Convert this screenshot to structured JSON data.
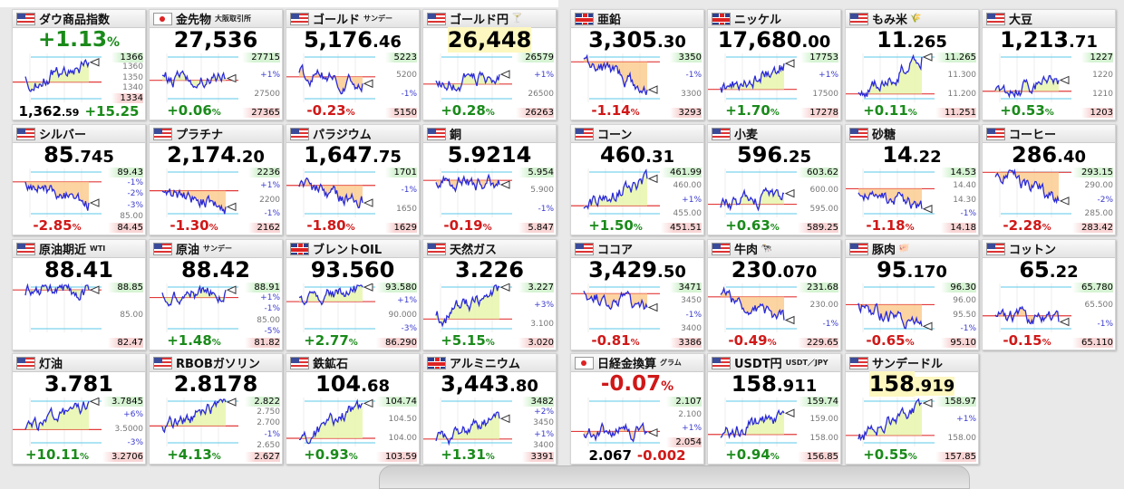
{
  "colors": {
    "up": "#1a8a1a",
    "down": "#d01818",
    "prev_close_line": "#e23a3a",
    "percent_line": "#5bc8e8",
    "series_line": "#2a2ad8"
  },
  "tiles": [
    {
      "name": "ダウ商品指数",
      "flag": "us",
      "mode": "change_top",
      "change": "+1.13",
      "pct": "%",
      "dir": "up",
      "bottom_price_int": "1,362",
      "bottom_price_dec": ".59",
      "bottom_diff": "+15.25",
      "high": "1366",
      "low": "1334",
      "labels": [
        "1360",
        "1350",
        "1340"
      ]
    },
    {
      "name": "金先物",
      "sub": "大阪取引所",
      "flag": "jp",
      "price_int": "27,536",
      "price_dec": "",
      "change": "+0.06",
      "pct": "%",
      "dir": "up",
      "high": "27715",
      "low": "27365",
      "labels": [
        "+1%",
        "27500"
      ]
    },
    {
      "name": "ゴールド",
      "sub": "サンデー",
      "flag": "us",
      "price_int": "5,176",
      "price_dec": ".46",
      "change": "-0.23",
      "pct": "%",
      "dir": "down",
      "high": "5223",
      "low": "5150",
      "labels": [
        "5200",
        "-1%"
      ]
    },
    {
      "name": "ゴールド円",
      "icon": "🍸",
      "flag": "us",
      "price_int": "26,448",
      "price_dec": "",
      "highlight": true,
      "change": "+0.28",
      "pct": "%",
      "dir": "up",
      "high": "26579",
      "low": "26263",
      "labels": [
        "+1%",
        "26500"
      ]
    },
    {
      "name": "亜鉛",
      "flag": "uk",
      "price_int": "3,305",
      "price_dec": ".30",
      "change": "-1.14",
      "pct": "%",
      "dir": "down",
      "high": "3350",
      "low": "3293",
      "labels": [
        "-1%",
        "3300"
      ]
    },
    {
      "name": "ニッケル",
      "flag": "uk",
      "price_int": "17,680",
      "price_dec": ".00",
      "change": "+1.70",
      "pct": "%",
      "dir": "up",
      "high": "17753",
      "low": "17278",
      "labels": [
        "+1%",
        "17500"
      ]
    },
    {
      "name": "もみ米",
      "icon": "🌾",
      "flag": "us",
      "price_int": "11",
      "price_dec": ".265",
      "change": "+0.11",
      "pct": "%",
      "dir": "up",
      "high": "11.265",
      "low": "11.251",
      "labels": [
        "11.300",
        "11.200"
      ]
    },
    {
      "name": "大豆",
      "flag": "us",
      "price_int": "1,213",
      "price_dec": ".71",
      "change": "+0.53",
      "pct": "%",
      "dir": "up",
      "high": "1227",
      "low": "1203",
      "labels": [
        "1220",
        "1210"
      ]
    },
    {
      "name": "シルバー",
      "flag": "us",
      "price_int": "85",
      "price_dec": ".745",
      "change": "-2.85",
      "pct": "%",
      "dir": "down",
      "high": "89.43",
      "low": "84.45",
      "labels": [
        "-1%",
        "-2%",
        "-3%",
        "85.00"
      ]
    },
    {
      "name": "プラチナ",
      "flag": "us",
      "price_int": "2,174",
      "price_dec": ".20",
      "change": "-1.30",
      "pct": "%",
      "dir": "down",
      "high": "2236",
      "low": "2162",
      "labels": [
        "+1%",
        "2200",
        "-1%"
      ]
    },
    {
      "name": "パラジウム",
      "flag": "us",
      "price_int": "1,647",
      "price_dec": ".75",
      "change": "-1.80",
      "pct": "%",
      "dir": "down",
      "high": "1701",
      "low": "1629",
      "labels": [
        "-1%",
        "1650"
      ]
    },
    {
      "name": "銅",
      "flag": "us",
      "price_int": "5.9214",
      "price_dec": "",
      "change": "-0.19",
      "pct": "%",
      "dir": "down",
      "high": "5.954",
      "low": "5.847",
      "labels": [
        "5.900",
        "-1%"
      ]
    },
    {
      "name": "コーン",
      "flag": "us",
      "price_int": "460",
      "price_dec": ".31",
      "change": "+1.50",
      "pct": "%",
      "dir": "up",
      "high": "461.99",
      "low": "451.51",
      "labels": [
        "460.00",
        "+1%",
        "455.00"
      ]
    },
    {
      "name": "小麦",
      "flag": "us",
      "price_int": "596",
      "price_dec": ".25",
      "change": "+0.63",
      "pct": "%",
      "dir": "up",
      "high": "603.62",
      "low": "589.25",
      "labels": [
        "600.00",
        "595.00"
      ]
    },
    {
      "name": "砂糖",
      "flag": "us",
      "price_int": "14",
      "price_dec": ".22",
      "change": "-1.18",
      "pct": "%",
      "dir": "down",
      "high": "14.53",
      "low": "14.18",
      "labels": [
        "14.40",
        "14.30",
        "-1%"
      ]
    },
    {
      "name": "コーヒー",
      "flag": "us",
      "price_int": "286",
      "price_dec": ".40",
      "change": "-2.28",
      "pct": "%",
      "dir": "down",
      "high": "293.15",
      "low": "283.42",
      "labels": [
        "290.00",
        "-2%",
        "285.00"
      ]
    },
    {
      "name": "原油期近",
      "sub": "WTI",
      "flag": "us",
      "price_int": "88.41",
      "price_dec": "",
      "change": "",
      "pct": "",
      "dir": "up",
      "high": "88.85",
      "low": "82.47",
      "labels": [
        "85.00"
      ]
    },
    {
      "name": "原油",
      "sub": "サンデー",
      "flag": "us",
      "price_int": "88.42",
      "price_dec": "",
      "change": "+1.48",
      "pct": "%",
      "dir": "up",
      "high": "88.91",
      "low": "81.82",
      "labels": [
        "+1%",
        "-1%",
        "85.00",
        "-5%"
      ]
    },
    {
      "name": "ブレントOIL",
      "flag": "uk",
      "price_int": "93.560",
      "price_dec": "",
      "change": "+2.77",
      "pct": "%",
      "dir": "up",
      "high": "93.580",
      "low": "86.290",
      "labels": [
        "+1%",
        "90.000",
        "-3%"
      ]
    },
    {
      "name": "天然ガス",
      "flag": "us",
      "price_int": "3.226",
      "price_dec": "",
      "change": "+5.15",
      "pct": "%",
      "dir": "up",
      "high": "3.227",
      "low": "3.020",
      "labels": [
        "+3%",
        "3.100"
      ]
    },
    {
      "name": "ココア",
      "flag": "us",
      "price_int": "3,429",
      "price_dec": ".50",
      "change": "-0.81",
      "pct": "%",
      "dir": "down",
      "high": "3471",
      "low": "3386",
      "labels": [
        "3450",
        "-1%",
        "3400"
      ]
    },
    {
      "name": "牛肉",
      "icon": "🐄",
      "flag": "us",
      "price_int": "230",
      "price_dec": ".070",
      "change": "-0.49",
      "pct": "%",
      "dir": "down",
      "high": "231.68",
      "low": "229.65",
      "labels": [
        "230.00",
        "-1%"
      ]
    },
    {
      "name": "豚肉",
      "icon": "🐖",
      "flag": "us",
      "price_int": "95",
      "price_dec": ".170",
      "change": "-0.65",
      "pct": "%",
      "dir": "down",
      "high": "96.30",
      "low": "95.10",
      "labels": [
        "96.00",
        "95.50",
        "-1%"
      ]
    },
    {
      "name": "コットン",
      "flag": "us",
      "price_int": "65",
      "price_dec": ".22",
      "change": "-0.15",
      "pct": "%",
      "dir": "down",
      "high": "65.780",
      "low": "65.110",
      "labels": [
        "65.500",
        "-1%"
      ]
    },
    {
      "name": "灯油",
      "flag": "us",
      "price_int": "3.781",
      "price_dec": "",
      "change": "+10.11",
      "pct": "%",
      "dir": "up",
      "high": "3.7845",
      "low": "3.2706",
      "labels": [
        "+6%",
        "3.5000",
        "-3%"
      ]
    },
    {
      "name": "RBOBガソリン",
      "flag": "us",
      "price_int": "2.8178",
      "price_dec": "",
      "change": "+4.13",
      "pct": "%",
      "dir": "up",
      "high": "2.822",
      "low": "2.627",
      "labels": [
        "2.750",
        "2.700",
        "-1%",
        "2.650"
      ]
    },
    {
      "name": "鉄鉱石",
      "flag": "us",
      "price_int": "104",
      "price_dec": ".68",
      "change": "+0.93",
      "pct": "%",
      "dir": "up",
      "high": "104.74",
      "low": "103.59",
      "labels": [
        "104.50",
        "104.00"
      ]
    },
    {
      "name": "アルミニウム",
      "flag": "uk",
      "price_int": "3,443",
      "price_dec": ".80",
      "change": "+1.31",
      "pct": "%",
      "dir": "up",
      "high": "3482",
      "low": "3391",
      "labels": [
        "+2%",
        "3450",
        "+1%",
        "3400"
      ]
    },
    {
      "name": "日経金換算",
      "sub": "グラム",
      "flag": "jp",
      "mode": "change_top",
      "change": "-0.07",
      "pct": "%",
      "dir": "down",
      "bottom_price_int": "2.067",
      "bottom_price_dec": "",
      "bottom_diff": "-0.002",
      "high": "2.107",
      "low": "2.054",
      "labels": [
        "2.100",
        "+1%"
      ]
    },
    {
      "name": "USDT円",
      "sub": "USDT／JPY",
      "flag": "us",
      "price_int": "158",
      "price_dec": ".911",
      "change": "+0.94",
      "pct": "%",
      "dir": "up",
      "high": "159.74",
      "low": "156.85",
      "labels": [
        "159.00",
        "158.00"
      ]
    },
    {
      "name": "サンデードル",
      "flag": "us",
      "price_int": "158",
      "price_dec": ".919",
      "highlight": true,
      "change": "+0.55",
      "pct": "%",
      "dir": "up",
      "high": "158.97",
      "low": "157.85",
      "labels": [
        "+1%",
        "158.00"
      ]
    }
  ]
}
